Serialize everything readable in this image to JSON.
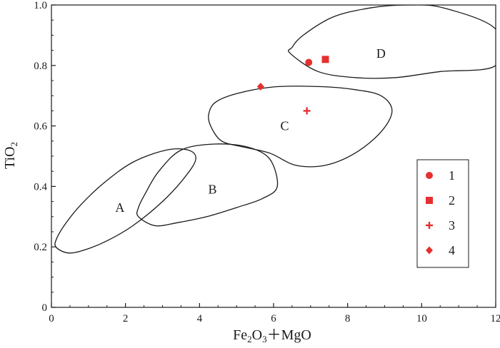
{
  "chart_data": {
    "type": "scatter",
    "xlabel": "Fe2O3+MgO",
    "ylabel": "TiO2",
    "xlim": [
      0,
      12
    ],
    "ylim": [
      0,
      1.0
    ],
    "xticks": [
      "0",
      "2",
      "4",
      "6",
      "8",
      "10",
      "12"
    ],
    "yticks": [
      "0",
      "0.2",
      "0.4",
      "0.6",
      "0.8",
      "1.0"
    ],
    "colors": {
      "marker": "#e53030",
      "line": "#1a1a1a"
    },
    "series": [
      {
        "name": "1",
        "marker": "circle",
        "x": [
          6.95
        ],
        "y": [
          0.81
        ]
      },
      {
        "name": "2",
        "marker": "square",
        "x": [
          7.4
        ],
        "y": [
          0.82
        ]
      },
      {
        "name": "3",
        "marker": "plus",
        "x": [
          6.9
        ],
        "y": [
          0.65
        ]
      },
      {
        "name": "4",
        "marker": "diamond",
        "x": [
          5.65
        ],
        "y": [
          0.73
        ]
      }
    ],
    "regions": [
      {
        "label": "A",
        "label_at": [
          1.85,
          0.33
        ],
        "outline": [
          [
            0.12,
            0.2
          ],
          [
            0.45,
            0.18
          ],
          [
            0.9,
            0.19
          ],
          [
            1.5,
            0.22
          ],
          [
            2.2,
            0.27
          ],
          [
            3.0,
            0.35
          ],
          [
            3.6,
            0.43
          ],
          [
            3.9,
            0.49
          ],
          [
            3.7,
            0.52
          ],
          [
            3.1,
            0.52
          ],
          [
            2.2,
            0.48
          ],
          [
            1.4,
            0.41
          ],
          [
            0.8,
            0.34
          ],
          [
            0.4,
            0.28
          ],
          [
            0.15,
            0.23
          ]
        ]
      },
      {
        "label": "B",
        "label_at": [
          4.35,
          0.39
        ],
        "outline": [
          [
            2.35,
            0.3
          ],
          [
            2.8,
            0.27
          ],
          [
            3.4,
            0.28
          ],
          [
            4.2,
            0.3
          ],
          [
            5.0,
            0.33
          ],
          [
            5.7,
            0.36
          ],
          [
            6.1,
            0.4
          ],
          [
            5.9,
            0.49
          ],
          [
            5.3,
            0.53
          ],
          [
            4.4,
            0.54
          ],
          [
            3.5,
            0.52
          ],
          [
            2.9,
            0.45
          ],
          [
            2.55,
            0.38
          ],
          [
            2.35,
            0.33
          ]
        ]
      },
      {
        "label": "C",
        "label_at": [
          6.3,
          0.6
        ],
        "outline": [
          [
            4.3,
            0.6
          ],
          [
            4.6,
            0.55
          ],
          [
            5.2,
            0.53
          ],
          [
            5.9,
            0.51
          ],
          [
            6.6,
            0.47
          ],
          [
            7.4,
            0.47
          ],
          [
            8.2,
            0.51
          ],
          [
            8.9,
            0.58
          ],
          [
            9.2,
            0.65
          ],
          [
            8.9,
            0.7
          ],
          [
            8.2,
            0.72
          ],
          [
            7.3,
            0.73
          ],
          [
            6.1,
            0.73
          ],
          [
            5.1,
            0.71
          ],
          [
            4.45,
            0.68
          ],
          [
            4.25,
            0.64
          ]
        ]
      },
      {
        "label": "D",
        "label_at": [
          8.9,
          0.84
        ],
        "outline": [
          [
            6.45,
            0.84
          ],
          [
            7.2,
            0.78
          ],
          [
            8.2,
            0.76
          ],
          [
            9.3,
            0.76
          ],
          [
            10.5,
            0.78
          ],
          [
            12.0,
            0.8
          ],
          [
            12.0,
            0.92
          ],
          [
            10.6,
            0.99
          ],
          [
            9.6,
            1.0
          ],
          [
            8.6,
            0.99
          ],
          [
            7.6,
            0.96
          ],
          [
            6.8,
            0.9
          ],
          [
            6.5,
            0.86
          ]
        ]
      }
    ],
    "legend": {
      "placement": "lower-right"
    }
  }
}
